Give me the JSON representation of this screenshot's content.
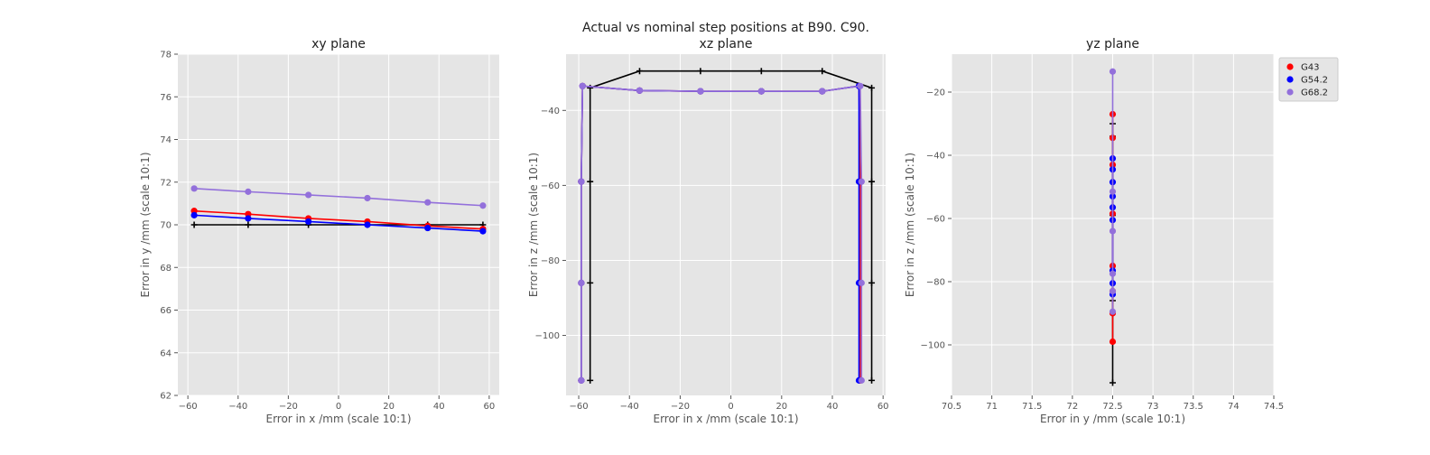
{
  "figure": {
    "suptitle_line1": "Actual vs nominal step positions at B90. C90."
  },
  "chart_data": [
    {
      "type": "line",
      "title": "xy plane",
      "xlabel": "Error in x /mm (scale 10:1)",
      "ylabel": "Error in y /mm (scale 10:1)",
      "xlim": [
        -64,
        64
      ],
      "ylim": [
        62,
        78
      ],
      "xticks": [
        -60,
        -40,
        -20,
        0,
        20,
        40,
        60
      ],
      "yticks": [
        62,
        64,
        66,
        68,
        70,
        72,
        74,
        76,
        78
      ],
      "grid": true,
      "nominal": {
        "x": [
          -57.5,
          -36,
          -12,
          11.5,
          35.5,
          57.5
        ],
        "y": [
          70,
          70,
          70,
          70,
          70,
          70
        ]
      },
      "series": [
        {
          "name": "G43",
          "color": "#ff0000",
          "x": [
            -57.5,
            -36,
            -12,
            11.5,
            35.5,
            57.5
          ],
          "y": [
            70.65,
            70.5,
            70.3,
            70.15,
            69.95,
            69.8
          ]
        },
        {
          "name": "G54.2",
          "color": "#0000ff",
          "x": [
            -57.5,
            -36,
            -12,
            11.5,
            35.5,
            57.5
          ],
          "y": [
            70.45,
            70.3,
            70.15,
            70.0,
            69.85,
            69.7
          ]
        },
        {
          "name": "G68.2",
          "color": "#9370db",
          "x": [
            -57.5,
            -36,
            -12,
            11.5,
            35.5,
            57.5
          ],
          "y": [
            71.7,
            71.55,
            71.4,
            71.25,
            71.05,
            70.9
          ]
        }
      ]
    },
    {
      "type": "line",
      "title": "xz plane",
      "xlabel": "Error in x /mm (scale 10:1)",
      "ylabel": "Error in z /mm (scale 10:1)",
      "xlim": [
        -65,
        61
      ],
      "ylim": [
        -116,
        -25
      ],
      "xticks": [
        -60,
        -40,
        -20,
        0,
        20,
        40,
        60
      ],
      "yticks": [
        -100,
        -80,
        -60,
        -40
      ],
      "grid": true,
      "nominal": {
        "x": [
          -55.5,
          -55.5,
          -55.5,
          -55.5,
          -36,
          -12,
          12,
          36,
          55.5,
          55.5,
          55.5,
          55.5
        ],
        "y": [
          -112,
          -86,
          -59,
          -34,
          -29.5,
          -29.5,
          -29.5,
          -29.5,
          -34,
          -59,
          -86,
          -112
        ]
      },
      "series": [
        {
          "name": "G43",
          "color": "#ff0000",
          "x": [
            -59,
            -59,
            -59,
            -58.5,
            -36,
            -12,
            12,
            36,
            50.5,
            51,
            51,
            51
          ],
          "y": [
            -112,
            -86,
            -59,
            -33.5,
            -34.7,
            -34.9,
            -34.9,
            -34.9,
            -33.5,
            -59,
            -86,
            -112
          ]
        },
        {
          "name": "G54.2",
          "color": "#0000ff",
          "x": [
            -59,
            -59,
            -59,
            -58.5,
            -36,
            -12,
            12,
            36,
            50.5,
            50.5,
            50.5,
            50.5
          ],
          "y": [
            -112,
            -86,
            -59,
            -33.5,
            -34.7,
            -34.9,
            -34.9,
            -34.9,
            -33.5,
            -59,
            -86,
            -112
          ]
        },
        {
          "name": "G68.2",
          "color": "#9370db",
          "x": [
            -59,
            -59,
            -59,
            -58.5,
            -36,
            -12,
            12,
            36,
            51,
            51.5,
            51.5,
            51.5
          ],
          "y": [
            -112,
            -86,
            -59,
            -33.5,
            -34.7,
            -34.9,
            -34.9,
            -34.9,
            -33.5,
            -59,
            -86,
            -112
          ]
        }
      ]
    },
    {
      "type": "line",
      "title": "yz plane",
      "xlabel": "Error in y /mm (scale 10:1)",
      "ylabel": "Error in z /mm (scale 10:1)",
      "xlim": [
        70.5,
        74.5
      ],
      "ylim": [
        -116,
        -8
      ],
      "xticks": [
        70.5,
        71.0,
        71.5,
        72.0,
        72.5,
        73.0,
        73.5,
        74.0,
        74.5
      ],
      "yticks": [
        -100,
        -80,
        -60,
        -40,
        -20
      ],
      "grid": true,
      "nominal": {
        "x": [
          72.5,
          72.5,
          72.5,
          72.5,
          72.5
        ],
        "y": [
          -112,
          -86,
          -59,
          -34,
          -30
        ]
      },
      "series": [
        {
          "name": "G43",
          "color": "#ff0000",
          "x": [
            72.5,
            72.5,
            72.5,
            72.5,
            72.5,
            72.5,
            72.5,
            72.5
          ],
          "y": [
            -27,
            -34.5,
            -43,
            -58.5,
            -75,
            -83,
            -90,
            -99
          ]
        },
        {
          "name": "G54.2",
          "color": "#0000ff",
          "x": [
            72.5,
            72.5,
            72.5,
            72.5,
            72.5,
            72.5,
            72.5,
            72.5,
            72.5
          ],
          "y": [
            -41,
            -44.5,
            -48.5,
            -53,
            -56.5,
            -60.5,
            -76.5,
            -80.5,
            -84
          ]
        },
        {
          "name": "G68.2",
          "color": "#9370db",
          "x": [
            72.5,
            72.5,
            72.5,
            72.5,
            72.5,
            72.5
          ],
          "y": [
            -13.5,
            -51.5,
            -64,
            -77.5,
            -83,
            -89.5
          ]
        }
      ],
      "legend": {
        "placement": "outside-right-top",
        "entries": [
          "G43",
          "G54.2",
          "G68.2"
        ]
      }
    }
  ],
  "colors": {
    "axes_bg": "#e5e5e5",
    "grid": "#ffffff",
    "nominal": "#000000",
    "tick_text": "#555555"
  }
}
